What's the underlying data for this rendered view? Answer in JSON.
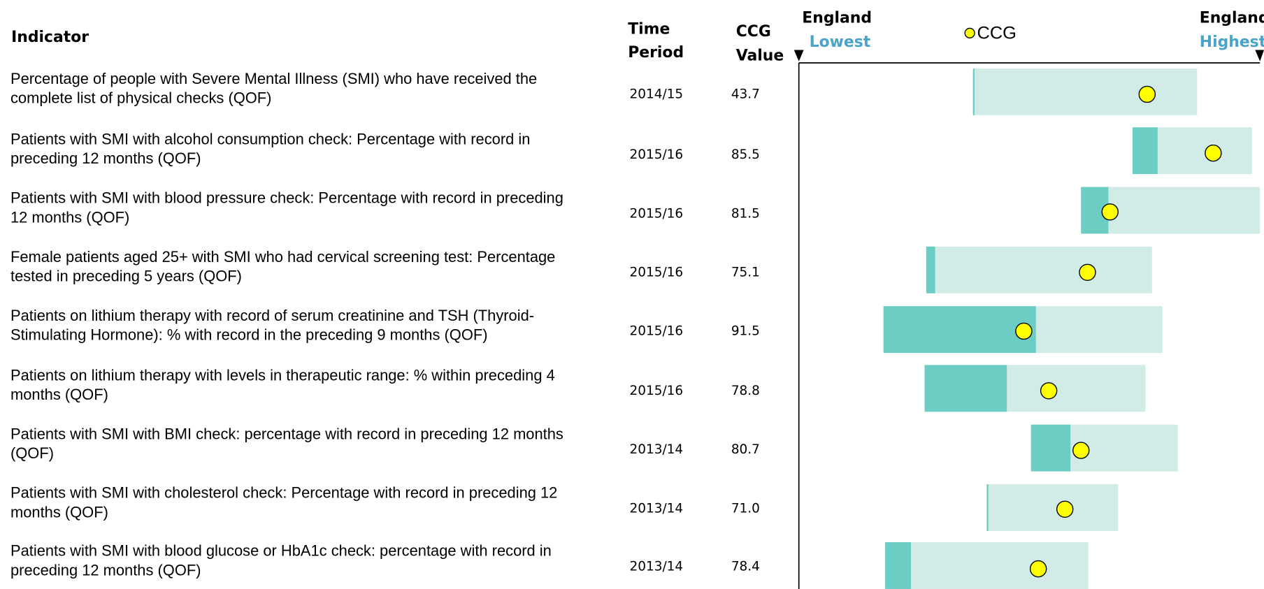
{
  "header": {
    "indicator": "Indicator",
    "time_period": [
      "Time",
      "Period"
    ],
    "ccg_value": [
      "CCG",
      "Value"
    ],
    "england_lowest": [
      "England",
      "Lowest"
    ],
    "england_highest": [
      "England",
      "Highest"
    ],
    "legend": "CCG"
  },
  "rows": [
    {
      "indicator": [
        "Percentage of people with Severe Mental Illness (SMI) who have received the",
        "complete list of physical checks (QOF)"
      ],
      "period": "2014/15",
      "value": "43.7"
    },
    {
      "indicator": [
        "Patients with SMI with alcohol consumption check: Percentage with record in",
        "preceding 12 months (QOF)"
      ],
      "period": "2015/16",
      "value": "85.5"
    },
    {
      "indicator": [
        "Patients with SMI with blood pressure check: Percentage with record in preceding",
        "12 months  (QOF)"
      ],
      "period": "2015/16",
      "value": "81.5"
    },
    {
      "indicator": [
        "Female patients aged 25+ with SMI who had cervical screening test: Percentage",
        "tested in preceding 5 years (QOF)"
      ],
      "period": "2015/16",
      "value": "75.1"
    },
    {
      "indicator": [
        "Patients on lithium therapy with record of serum creatinine and TSH (Thyroid-",
        "Stimulating Hormone): % with record in the preceding 9 months (QOF)"
      ],
      "period": "2015/16",
      "value": "91.5"
    },
    {
      "indicator": [
        "Patients on lithium therapy with levels in therapeutic range: % within preceding 4",
        "months (QOF)"
      ],
      "period": "2015/16",
      "value": "78.8"
    },
    {
      "indicator": [
        "Patients with SMI with BMI check: percentage with record in preceding 12 months",
        "(QOF)"
      ],
      "period": "2013/14",
      "value": "80.7"
    },
    {
      "indicator": [
        "Patients with SMI with cholesterol check: Percentage with record in preceding 12",
        "months (QOF)"
      ],
      "period": "2013/14",
      "value": "71.0"
    },
    {
      "indicator": [
        "Patients with SMI with blood glucose or HbA1c check: percentage with record in",
        "preceding 12 months (QOF)"
      ],
      "period": "2013/14",
      "value": "78.4"
    }
  ]
}
